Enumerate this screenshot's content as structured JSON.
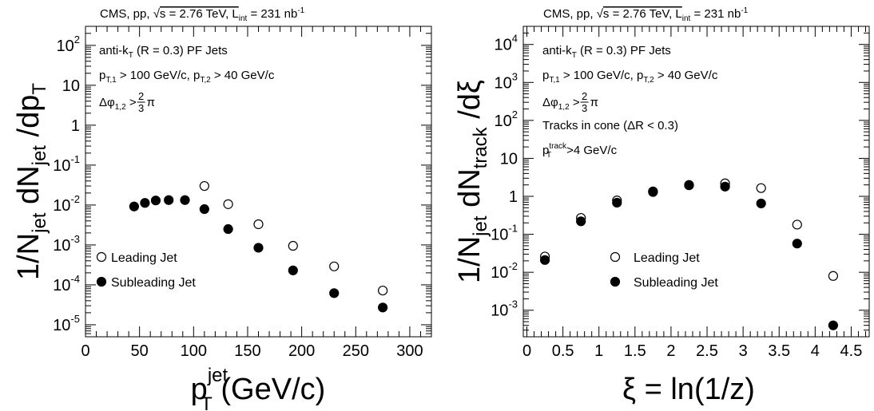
{
  "chart_data": [
    {
      "type": "scatter",
      "header": {
        "prefix": "CMS, pp, ",
        "sqrt": "√",
        "s_rest": "s = 2.76 TeV, L",
        "lumi_sub": "int",
        "lumi_val": " = 231 nb",
        "lumi_sup": "-1"
      },
      "y_axis": {
        "scale": "log",
        "ylim": [
          5e-06,
          300
        ],
        "tick_exponents": [
          -5,
          -4,
          -3,
          -2,
          -1,
          0,
          1,
          2
        ]
      },
      "x_axis": {
        "xlim": [
          0,
          320
        ],
        "ticks": [
          0,
          50,
          100,
          150,
          200,
          250,
          300
        ]
      },
      "ylabel": {
        "a": "1/N",
        "a_sub": "jet",
        "b": " dN",
        "b_sub": "jet",
        "c": " /dp",
        "c_sub": "T"
      },
      "xlabel": {
        "a": "p",
        "a_sub": "T",
        "a_sup": "jet",
        "b": " (GeV/c)"
      },
      "annotations": [
        {
          "kind": "antikt",
          "t1": "anti-k",
          "t1sub": "T",
          "t2": " (R = 0.3) PF Jets"
        },
        {
          "kind": "ptcut",
          "p": "p",
          "s1": "T,1",
          "m": " > 100 GeV/c, p",
          "s2": "T,2",
          "e": " > 40 GeV/c"
        },
        {
          "kind": "dphi",
          "d": "Δφ",
          "s": "1,2",
          "gt": " > ",
          "num": "2",
          "den": "3",
          "pi": "π"
        }
      ],
      "series": [
        {
          "name": "Leading Jet",
          "marker": "open-circle",
          "x": [
            110,
            132,
            160,
            192,
            230,
            275
          ],
          "y": [
            0.03,
            0.0105,
            0.0033,
            0.00095,
            0.00029,
            7.2e-05
          ]
        },
        {
          "name": "Subleading Jet",
          "marker": "filled-circle",
          "x": [
            45,
            55,
            65,
            77,
            92,
            110,
            132,
            160,
            192,
            230,
            275
          ],
          "y": [
            0.0092,
            0.0113,
            0.013,
            0.0133,
            0.0133,
            0.0079,
            0.0025,
            0.00085,
            0.00023,
            6.2e-05,
            2.7e-05
          ]
        }
      ],
      "legend": {
        "position": "bottom-left",
        "labels": [
          "Leading Jet",
          "Subleading Jet"
        ]
      }
    },
    {
      "type": "scatter",
      "header": {
        "prefix": "CMS, pp, ",
        "sqrt": "√",
        "s_rest": "s = 2.76 TeV, L",
        "lumi_sub": "int",
        "lumi_val": " = 231 nb",
        "lumi_sup": "-1"
      },
      "y_axis": {
        "scale": "log",
        "ylim": [
          0.0002,
          30000
        ],
        "tick_exponents": [
          -3,
          -2,
          -1,
          0,
          1,
          2,
          3,
          4
        ]
      },
      "x_axis": {
        "xlim": [
          -0.05,
          4.75
        ],
        "ticks": [
          "0",
          "0.5",
          "1",
          "1.5",
          "2",
          "2.5",
          "3",
          "3.5",
          "4",
          "4.5"
        ]
      },
      "ylabel": {
        "a": "1/N",
        "a_sub": "jet",
        "b": " dN",
        "b_sub": "track",
        "c": " /dξ"
      },
      "xlabel": {
        "a": "ξ = ln(1/z)"
      },
      "annotations": [
        {
          "kind": "antikt",
          "t1": "anti-k",
          "t1sub": "T",
          "t2": " (R = 0.3) PF Jets"
        },
        {
          "kind": "ptcut",
          "p": "p",
          "s1": "T,1",
          "m": " > 100 GeV/c, p",
          "s2": "T,2",
          "e": " > 40 GeV/c"
        },
        {
          "kind": "dphi",
          "d": "Δφ",
          "s": "1,2",
          "gt": " > ",
          "num": "2",
          "den": "3",
          "pi": "π"
        },
        {
          "kind": "cone",
          "text": "Tracks in cone (ΔR < 0.3)"
        },
        {
          "kind": "trkpt",
          "p": "p",
          "sub": "T",
          "sup": "track",
          "e": ">4 GeV/c"
        }
      ],
      "series": [
        {
          "name": "Leading Jet",
          "marker": "open-circle",
          "x": [
            0.25,
            0.75,
            1.25,
            1.75,
            2.25,
            2.75,
            3.25,
            3.75,
            4.25
          ],
          "y": [
            0.026,
            0.27,
            0.78,
            1.35,
            1.95,
            2.2,
            1.65,
            0.18,
            0.008
          ]
        },
        {
          "name": "Subleading Jet",
          "marker": "filled-circle",
          "x": [
            0.25,
            0.75,
            1.25,
            1.75,
            2.25,
            2.75,
            3.25,
            3.75,
            4.25
          ],
          "y": [
            0.021,
            0.22,
            0.68,
            1.3,
            2.0,
            1.8,
            0.65,
            0.057,
            0.0004
          ]
        }
      ],
      "legend": {
        "position": "bottom-center",
        "labels": [
          "Leading Jet",
          "Subleading Jet"
        ]
      }
    }
  ]
}
